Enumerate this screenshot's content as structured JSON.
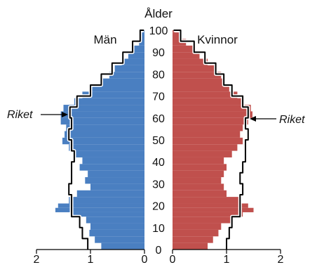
{
  "chart_data": {
    "type": "population-pyramid",
    "title": "Ålder",
    "left_label": "Män",
    "right_label": "Kvinnor",
    "reference_label": "Riket",
    "age_ticks": [
      "0",
      "10",
      "20",
      "30",
      "40",
      "50",
      "60",
      "70",
      "80",
      "90",
      "100"
    ],
    "x_ticks_left": [
      "2",
      "1",
      "0"
    ],
    "x_ticks_right": [
      "0",
      "1",
      "2"
    ],
    "xlim": [
      0,
      2
    ],
    "ylim": [
      0,
      100
    ],
    "colors": {
      "men": "#4a7fc1",
      "women": "#c0504d",
      "reference": "#000000"
    },
    "men": [
      {
        "age": 0,
        "value": 0.8
      },
      {
        "age": 3,
        "value": 0.92
      },
      {
        "age": 6,
        "value": 1.02
      },
      {
        "age": 9,
        "value": 1.0
      },
      {
        "age": 12,
        "value": 1.08
      },
      {
        "age": 15,
        "value": 1.35
      },
      {
        "age": 17,
        "value": 1.65
      },
      {
        "age": 19,
        "value": 1.6
      },
      {
        "age": 21,
        "value": 1.4
      },
      {
        "age": 24,
        "value": 1.25
      },
      {
        "age": 27,
        "value": 1.0
      },
      {
        "age": 30,
        "value": 1.1
      },
      {
        "age": 33,
        "value": 1.05
      },
      {
        "age": 36,
        "value": 1.2
      },
      {
        "age": 39,
        "value": 1.15
      },
      {
        "age": 42,
        "value": 1.3
      },
      {
        "age": 45,
        "value": 1.4
      },
      {
        "age": 48,
        "value": 1.52
      },
      {
        "age": 51,
        "value": 1.48
      },
      {
        "age": 54,
        "value": 1.45
      },
      {
        "age": 57,
        "value": 1.55
      },
      {
        "age": 60,
        "value": 1.55
      },
      {
        "age": 63,
        "value": 1.5
      },
      {
        "age": 66,
        "value": 1.3
      },
      {
        "age": 69,
        "value": 1.15
      },
      {
        "age": 72,
        "value": 1.0
      },
      {
        "age": 75,
        "value": 0.8
      },
      {
        "age": 78,
        "value": 0.65
      },
      {
        "age": 81,
        "value": 0.55
      },
      {
        "age": 84,
        "value": 0.42
      },
      {
        "age": 87,
        "value": 0.3
      },
      {
        "age": 90,
        "value": 0.2
      },
      {
        "age": 93,
        "value": 0.1
      },
      {
        "age": 96,
        "value": 0.05
      },
      {
        "age": 99,
        "value": 0.02
      }
    ],
    "women": [
      {
        "age": 0,
        "value": 0.65
      },
      {
        "age": 3,
        "value": 0.75
      },
      {
        "age": 6,
        "value": 0.85
      },
      {
        "age": 9,
        "value": 0.9
      },
      {
        "age": 12,
        "value": 1.1
      },
      {
        "age": 15,
        "value": 1.3
      },
      {
        "age": 17,
        "value": 1.5
      },
      {
        "age": 19,
        "value": 1.4
      },
      {
        "age": 21,
        "value": 1.25
      },
      {
        "age": 24,
        "value": 1.0
      },
      {
        "age": 27,
        "value": 0.95
      },
      {
        "age": 30,
        "value": 0.9
      },
      {
        "age": 33,
        "value": 0.95
      },
      {
        "age": 36,
        "value": 1.0
      },
      {
        "age": 39,
        "value": 0.95
      },
      {
        "age": 42,
        "value": 1.1
      },
      {
        "age": 45,
        "value": 1.2
      },
      {
        "age": 48,
        "value": 1.3
      },
      {
        "age": 51,
        "value": 1.25
      },
      {
        "age": 54,
        "value": 1.3
      },
      {
        "age": 57,
        "value": 1.4
      },
      {
        "age": 60,
        "value": 1.48
      },
      {
        "age": 63,
        "value": 1.45
      },
      {
        "age": 66,
        "value": 1.3
      },
      {
        "age": 69,
        "value": 1.2
      },
      {
        "age": 72,
        "value": 1.05
      },
      {
        "age": 75,
        "value": 0.95
      },
      {
        "age": 78,
        "value": 0.9
      },
      {
        "age": 81,
        "value": 0.8
      },
      {
        "age": 84,
        "value": 0.65
      },
      {
        "age": 87,
        "value": 0.5
      },
      {
        "age": 90,
        "value": 0.4
      },
      {
        "age": 93,
        "value": 0.25
      },
      {
        "age": 96,
        "value": 0.12
      },
      {
        "age": 99,
        "value": 0.04
      }
    ],
    "reference_men": [
      {
        "age": 0,
        "value": 1.05
      },
      {
        "age": 5,
        "value": 1.15
      },
      {
        "age": 10,
        "value": 1.2
      },
      {
        "age": 15,
        "value": 1.35
      },
      {
        "age": 20,
        "value": 1.35
      },
      {
        "age": 25,
        "value": 1.4
      },
      {
        "age": 30,
        "value": 1.35
      },
      {
        "age": 35,
        "value": 1.35
      },
      {
        "age": 40,
        "value": 1.3
      },
      {
        "age": 45,
        "value": 1.35
      },
      {
        "age": 50,
        "value": 1.4
      },
      {
        "age": 55,
        "value": 1.35
      },
      {
        "age": 60,
        "value": 1.38
      },
      {
        "age": 65,
        "value": 1.25
      },
      {
        "age": 70,
        "value": 1.0
      },
      {
        "age": 75,
        "value": 0.8
      },
      {
        "age": 80,
        "value": 0.6
      },
      {
        "age": 85,
        "value": 0.4
      },
      {
        "age": 90,
        "value": 0.22
      },
      {
        "age": 95,
        "value": 0.08
      },
      {
        "age": 100,
        "value": 0.01
      }
    ],
    "reference_women": [
      {
        "age": 0,
        "value": 1.0
      },
      {
        "age": 5,
        "value": 1.05
      },
      {
        "age": 10,
        "value": 1.1
      },
      {
        "age": 15,
        "value": 1.25
      },
      {
        "age": 20,
        "value": 1.25
      },
      {
        "age": 25,
        "value": 1.3
      },
      {
        "age": 30,
        "value": 1.25
      },
      {
        "age": 35,
        "value": 1.3
      },
      {
        "age": 40,
        "value": 1.35
      },
      {
        "age": 45,
        "value": 1.35
      },
      {
        "age": 50,
        "value": 1.4
      },
      {
        "age": 55,
        "value": 1.35
      },
      {
        "age": 60,
        "value": 1.4
      },
      {
        "age": 65,
        "value": 1.3
      },
      {
        "age": 70,
        "value": 1.1
      },
      {
        "age": 75,
        "value": 0.95
      },
      {
        "age": 80,
        "value": 0.8
      },
      {
        "age": 85,
        "value": 0.6
      },
      {
        "age": 90,
        "value": 0.4
      },
      {
        "age": 95,
        "value": 0.15
      },
      {
        "age": 100,
        "value": 0.02
      }
    ]
  }
}
